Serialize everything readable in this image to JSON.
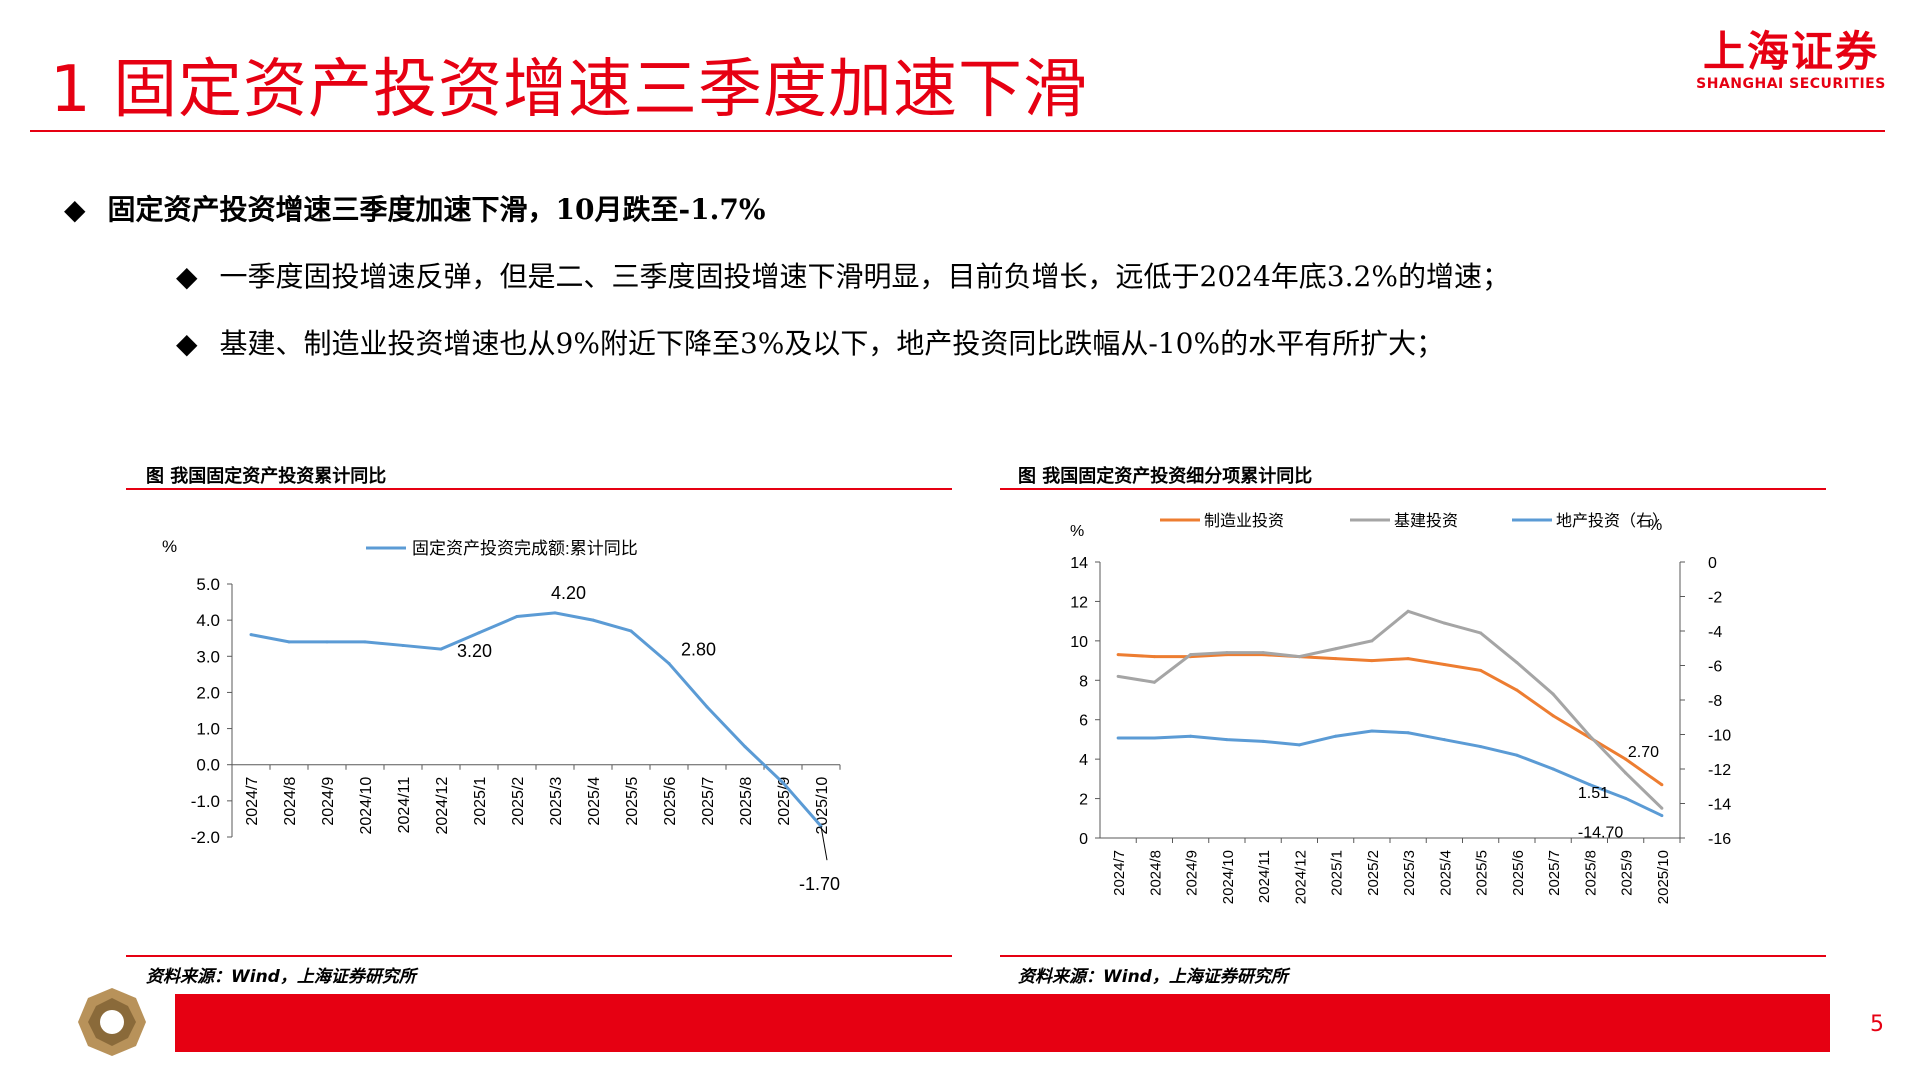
{
  "header": {
    "title": "1 固定资产投资增速三季度加速下滑",
    "logo_cn": "上海证券",
    "logo_en": "SHANGHAI SECURITIES"
  },
  "bullets": {
    "main": "固定资产投资增速三季度加速下滑，10月跌至-1.7%",
    "sub1": "一季度固投增速反弹，但是二、三季度固投增速下滑明显，目前负增长，远低于2024年底3.2%的增速；",
    "sub2": "基建、制造业投资增速也从9%附近下降至3%及以下，地产投资同比跌幅从-10%的水平有所扩大；",
    "marker": "◆"
  },
  "footer": {
    "page": "5"
  },
  "colors": {
    "brand": "#e60012",
    "line1": "#5b9bd5",
    "manufacturing": "#ed7d31",
    "infrastructure": "#a5a5a5",
    "realestate": "#5b9bd5"
  },
  "chart_data": [
    {
      "type": "line",
      "title": "图  我国固定资产投资累计同比",
      "source": "资料来源：Wind，上海证券研究所",
      "unit_label": "%",
      "x": [
        "2024/7",
        "2024/8",
        "2024/9",
        "2024/10",
        "2024/11",
        "2024/12",
        "2025/1",
        "2025/2",
        "2025/3",
        "2025/4",
        "2025/5",
        "2025/6",
        "2025/7",
        "2025/8",
        "2025/9",
        "2025/10"
      ],
      "ylim": [
        -2.0,
        5.0
      ],
      "yticks": [
        "5.0",
        "4.0",
        "3.0",
        "2.0",
        "1.0",
        "0.0",
        "-1.0",
        "-2.0"
      ],
      "series": [
        {
          "name": "固定资产投资完成额:累计同比",
          "values": [
            3.6,
            3.4,
            3.4,
            3.4,
            3.3,
            3.2,
            3.65,
            4.1,
            4.2,
            4.0,
            3.7,
            2.8,
            1.6,
            0.5,
            -0.5,
            -1.7
          ]
        }
      ],
      "annotations": [
        "3.20",
        "4.20",
        "2.80",
        "-1.70"
      ],
      "legend": "top"
    },
    {
      "type": "line",
      "title": "图  我国固定资产投资细分项累计同比",
      "source": "资料来源：Wind，上海证券研究所",
      "unit_left": "%",
      "unit_right": "%",
      "x": [
        "2024/7",
        "2024/8",
        "2024/9",
        "2024/10",
        "2024/11",
        "2024/12",
        "2025/1",
        "2025/2",
        "2025/3",
        "2025/4",
        "2025/5",
        "2025/6",
        "2025/7",
        "2025/8",
        "2025/9",
        "2025/10"
      ],
      "ylim_left": [
        0,
        14
      ],
      "yticks_left": [
        "14",
        "12",
        "10",
        "8",
        "6",
        "4",
        "2",
        "0"
      ],
      "ylim_right": [
        -16,
        0
      ],
      "yticks_right": [
        "0",
        "-2",
        "-4",
        "-6",
        "-8",
        "-10",
        "-12",
        "-14",
        "-16"
      ],
      "series": [
        {
          "name": "制造业投资",
          "axis": "left",
          "values": [
            9.3,
            9.2,
            9.2,
            9.3,
            9.3,
            9.2,
            9.1,
            9.0,
            9.1,
            8.8,
            8.5,
            7.5,
            6.2,
            5.1,
            4.0,
            2.7
          ]
        },
        {
          "name": "基建投资",
          "axis": "left",
          "values": [
            8.2,
            7.9,
            9.3,
            9.4,
            9.4,
            9.2,
            9.6,
            10.0,
            11.5,
            10.9,
            10.4,
            8.9,
            7.3,
            5.2,
            3.3,
            1.51
          ]
        },
        {
          "name": "地产投资（右）",
          "axis": "right",
          "values": [
            -10.2,
            -10.2,
            -10.1,
            -10.3,
            -10.4,
            -10.6,
            -10.1,
            -9.8,
            -9.9,
            -10.3,
            -10.7,
            -11.2,
            -12.0,
            -12.9,
            -13.7,
            -14.7
          ]
        }
      ],
      "annotations": [
        "2.70",
        "1.51",
        "-14.70"
      ],
      "legend": "top"
    }
  ]
}
